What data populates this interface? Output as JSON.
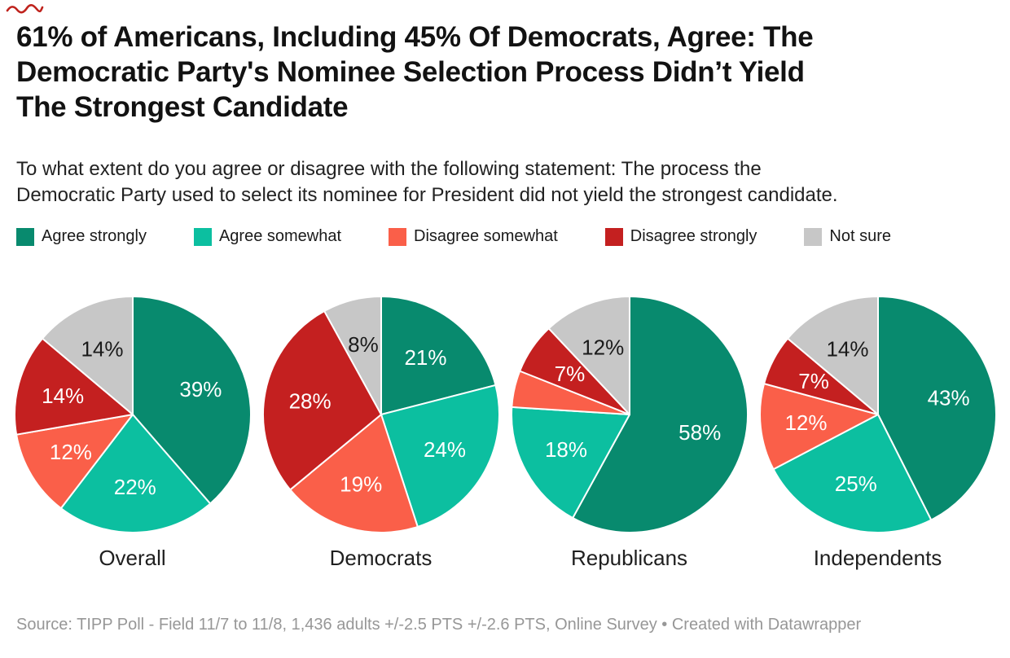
{
  "title": {
    "lines": [
      "61% of Americans, Including 45% Of Democrats, Agree: The",
      "Democratic Party's Nominee Selection Process Didn’t Yield",
      "The Strongest Candidate"
    ]
  },
  "subtitle": {
    "lines": [
      "To what extent do you agree or disagree with the following statement: The process the",
      "Democratic Party used to select its nominee for President did not yield the strongest candidate."
    ]
  },
  "footer": {
    "source": "Source: TIPP Poll - Field 11/7 to 11/8, 1,436 adults +/-2.5 PTS +/-2.6 PTS, Online Survey",
    "separator": "•",
    "attribution": "Created with Datawrapper"
  },
  "chart_data": {
    "type": "pie",
    "layout": "four pie small-multiples, one per group, shared legend on top, value labels inside slices",
    "title": "61% of Americans, Including 45% Of Democrats, Agree: The Democratic Party's Nominee Selection Process Didn’t Yield The Strongest Candidate",
    "legend_position": "top",
    "categories": [
      "Agree strongly",
      "Agree somewhat",
      "Disagree somewhat",
      "Disagree strongly",
      "Not sure"
    ],
    "colors": [
      "#088a6e",
      "#0cbfa0",
      "#fa5f49",
      "#c42020",
      "#c7c7c7"
    ],
    "label_text_colors": [
      "#ffffff",
      "#ffffff",
      "#ffffff",
      "#ffffff",
      "#1a1a1a"
    ],
    "start_angle_deg": 0,
    "direction": "clockwise",
    "pies": [
      {
        "group": "Overall",
        "values": [
          39,
          22,
          12,
          14,
          14
        ],
        "labels": [
          "39%",
          "22%",
          "12%",
          "14%",
          "14%"
        ]
      },
      {
        "group": "Democrats",
        "values": [
          21,
          24,
          19,
          28,
          8
        ],
        "labels": [
          "21%",
          "24%",
          "19%",
          "28%",
          "8%"
        ]
      },
      {
        "group": "Republicans",
        "values": [
          58,
          18,
          5,
          7,
          12
        ],
        "labels": [
          "58%",
          "18%",
          "",
          "7%",
          "12%"
        ]
      },
      {
        "group": "Independents",
        "values": [
          43,
          25,
          12,
          7,
          14
        ],
        "labels": [
          "43%",
          "25%",
          "12%",
          "7%",
          "14%"
        ]
      }
    ]
  }
}
